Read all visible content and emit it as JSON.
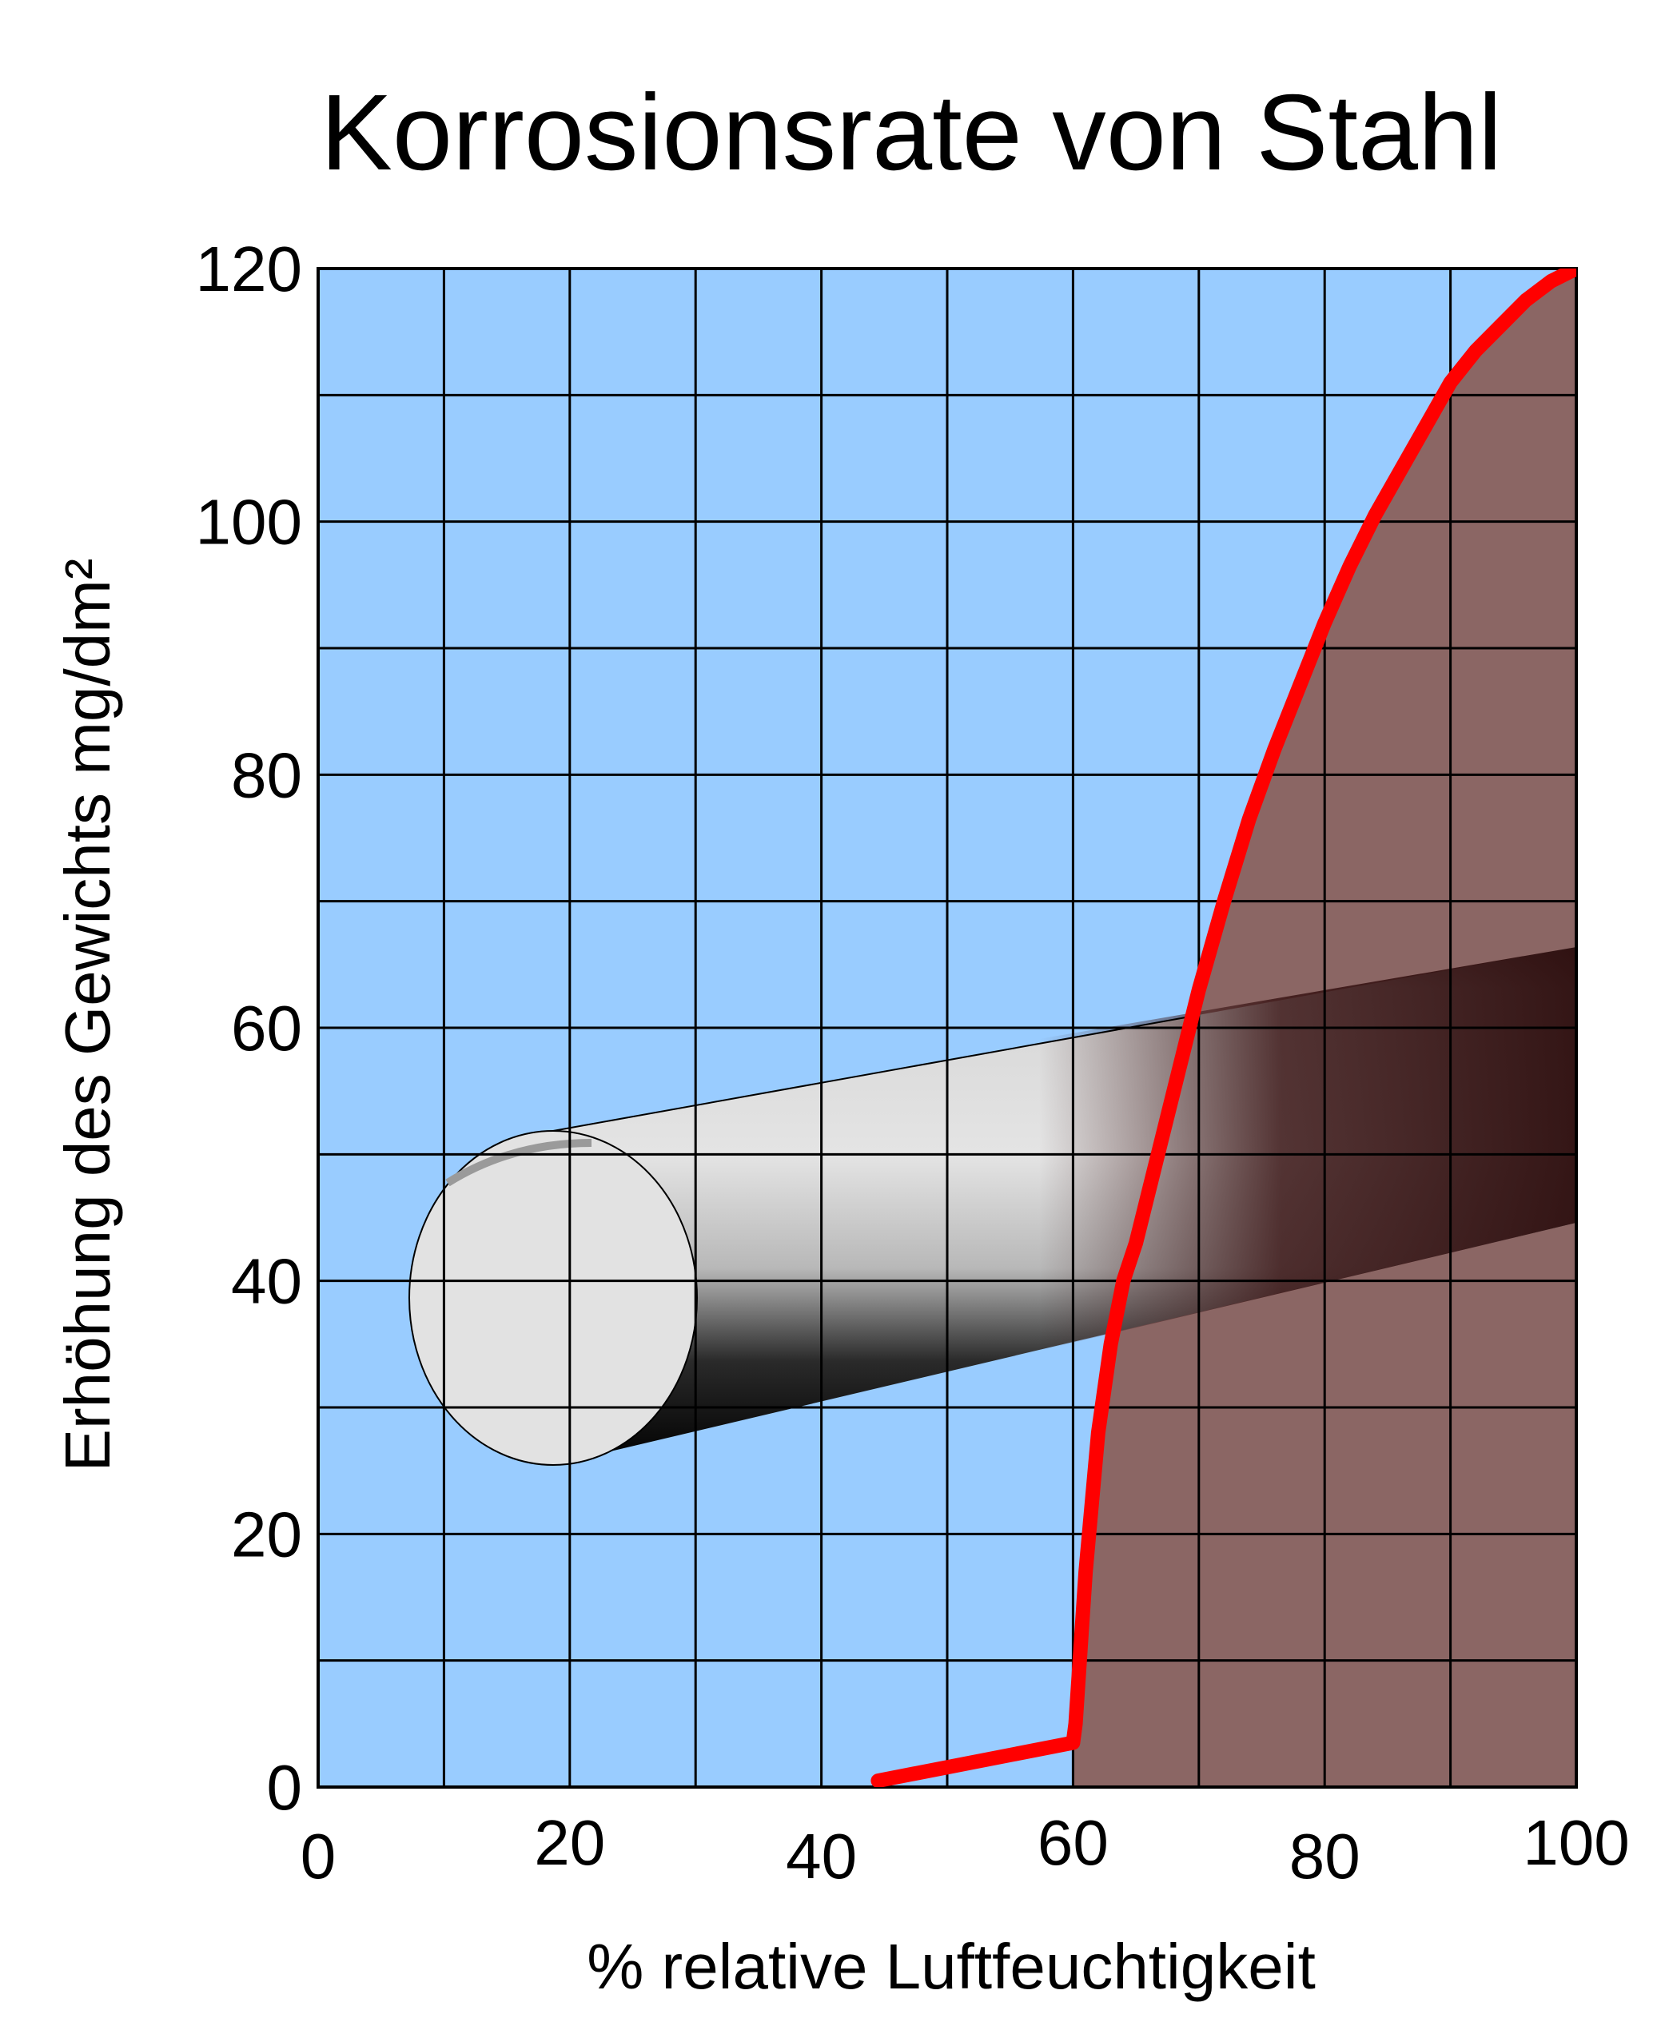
{
  "chart_data": {
    "type": "area",
    "title": "Korrosionsrate von Stahl",
    "xlabel": "% relative Luftfeuchtigkeit",
    "ylabel": "Erhöhung des Gewichts mg/dm²",
    "xlim": [
      0,
      100
    ],
    "ylim": [
      0,
      120
    ],
    "grid": true,
    "x_ticks": [
      {
        "value": 0,
        "label": "0"
      },
      {
        "value": 20,
        "label": "20"
      },
      {
        "value": 40,
        "label": "40"
      },
      {
        "value": 60,
        "label": "60"
      },
      {
        "value": 80,
        "label": "80"
      },
      {
        "value": 100,
        "label": "100"
      }
    ],
    "y_ticks": [
      {
        "value": 0,
        "label": "0"
      },
      {
        "value": 20,
        "label": "20"
      },
      {
        "value": 40,
        "label": "40"
      },
      {
        "value": 60,
        "label": "60"
      },
      {
        "value": 80,
        "label": "80"
      },
      {
        "value": 100,
        "label": "100"
      },
      {
        "value": 120,
        "label": "120"
      }
    ],
    "series": [
      {
        "x": [
          44.5,
          60,
          60.2,
          61,
          62,
          63,
          64,
          65,
          66,
          67,
          68,
          70,
          72,
          74,
          76,
          78,
          80,
          82,
          84,
          86,
          88,
          90,
          92,
          94,
          96,
          98,
          100
        ],
        "y": [
          0.5,
          3.5,
          5,
          17,
          28,
          35,
          40,
          43,
          47,
          51,
          55,
          63,
          70,
          76.5,
          82,
          87,
          92,
          96.5,
          100.5,
          104,
          107.5,
          111,
          113.5,
          115.5,
          117.5,
          119,
          120
        ],
        "color": "#ff0000",
        "fill": "#8b6664"
      }
    ],
    "colors": {
      "plot_background": "#99ccff",
      "grid": "#000000",
      "curve": "#ff0000",
      "area_fill": "#8b6664"
    },
    "decoration": "steel-bar-icon"
  }
}
